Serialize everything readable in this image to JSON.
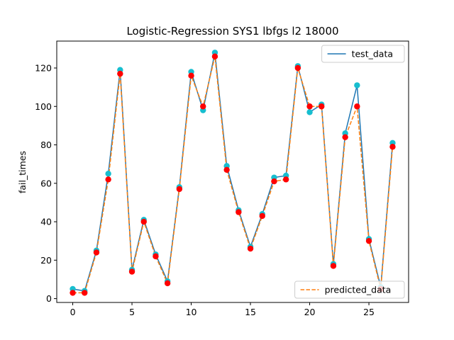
{
  "chart_data": {
    "type": "line",
    "title": "Logistic-Regression SYS1 lbfgs l2 18000",
    "xlabel": "",
    "ylabel": "fail_times",
    "xlim": [
      -1.35,
      28.35
    ],
    "ylim": [
      -2,
      134
    ],
    "xticks": [
      0,
      5,
      10,
      15,
      20,
      25
    ],
    "yticks": [
      0,
      20,
      40,
      60,
      80,
      100,
      120
    ],
    "x": [
      0,
      1,
      2,
      3,
      4,
      5,
      6,
      7,
      8,
      9,
      10,
      11,
      12,
      13,
      14,
      15,
      16,
      17,
      18,
      19,
      20,
      21,
      22,
      23,
      24,
      25,
      26,
      27
    ],
    "series": [
      {
        "name": "test_data",
        "style": "solid",
        "color": "#1f77b4",
        "marker_color": "#17becf",
        "values": [
          5,
          4,
          25,
          65,
          119,
          15,
          41,
          23,
          9,
          58,
          118,
          98,
          128,
          69,
          46,
          27,
          44,
          63,
          64,
          121,
          97,
          101,
          18,
          86,
          111,
          31,
          6,
          81
        ]
      },
      {
        "name": "predicted_data",
        "style": "dashed",
        "color": "#ff7f0e",
        "marker_color": "#ff0000",
        "values": [
          3,
          3,
          24,
          62,
          117,
          14,
          40,
          22,
          8,
          57,
          116,
          100,
          126,
          67,
          45,
          26,
          43,
          61,
          62,
          120,
          100,
          100,
          17,
          84,
          100,
          30,
          5,
          79
        ]
      }
    ],
    "legends": [
      {
        "entries": [
          "test_data"
        ],
        "placement": "top-right"
      },
      {
        "entries": [
          "predicted_data"
        ],
        "placement": "bottom-right"
      }
    ],
    "grid": false
  }
}
